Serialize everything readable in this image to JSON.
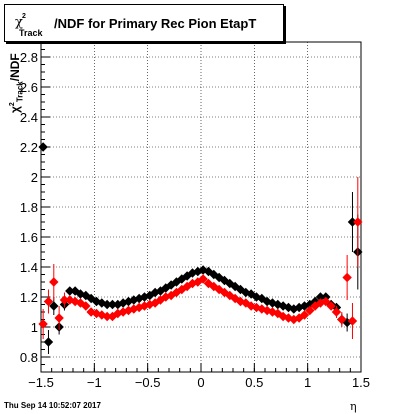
{
  "chart_data": {
    "type": "scatter",
    "title": "/NDF for Primary Rec Pion EtapT",
    "title_symbol": "χ",
    "title_superscript": "2",
    "title_subscript": "Track",
    "xlabel": "η",
    "ylabel": "/NDF",
    "ylabel_symbol": "χ",
    "ylabel_superscript": "2",
    "ylabel_subscript": "Track",
    "xlim": [
      -1.5,
      1.5
    ],
    "ylim": [
      0.7,
      2.9
    ],
    "xticks": [
      -1.5,
      -1,
      -0.5,
      0,
      0.5,
      1,
      1.5
    ],
    "xtick_labels": [
      "−1.5",
      "−1",
      "−0.5",
      "0",
      "0.5",
      "1",
      "1.5"
    ],
    "yticks": [
      0.8,
      1,
      1.2,
      1.4,
      1.6,
      1.8,
      2,
      2.2,
      2.4,
      2.6,
      2.8
    ],
    "ytick_labels": [
      "0.8",
      "1",
      "1.2",
      "1.4",
      "1.6",
      "1.8",
      "2",
      "2.2",
      "2.4",
      "2.6",
      "2.8"
    ],
    "grid": true,
    "footer": "Thu Sep 14 10:52:07 2017",
    "series": [
      {
        "color": "#000000",
        "marker": "diamond",
        "points": [
          {
            "x": -1.48,
            "y": 2.2,
            "err": 0.0
          },
          {
            "x": -1.43,
            "y": 0.9,
            "err": 0.08
          },
          {
            "x": -1.38,
            "y": 1.14,
            "err": 0.06
          },
          {
            "x": -1.33,
            "y": 1.0,
            "err": 0.05
          },
          {
            "x": -1.28,
            "y": 1.15,
            "err": 0.04
          },
          {
            "x": -1.23,
            "y": 1.24,
            "err": 0.0
          },
          {
            "x": -1.18,
            "y": 1.24,
            "err": 0.0
          },
          {
            "x": -1.13,
            "y": 1.22,
            "err": 0.0
          },
          {
            "x": -1.08,
            "y": 1.21,
            "err": 0.0
          },
          {
            "x": -1.03,
            "y": 1.19,
            "err": 0.0
          },
          {
            "x": -0.98,
            "y": 1.17,
            "err": 0.0
          },
          {
            "x": -0.93,
            "y": 1.16,
            "err": 0.0
          },
          {
            "x": -0.88,
            "y": 1.15,
            "err": 0.0
          },
          {
            "x": -0.83,
            "y": 1.15,
            "err": 0.0
          },
          {
            "x": -0.78,
            "y": 1.15,
            "err": 0.0
          },
          {
            "x": -0.73,
            "y": 1.16,
            "err": 0.0
          },
          {
            "x": -0.68,
            "y": 1.17,
            "err": 0.0
          },
          {
            "x": -0.63,
            "y": 1.18,
            "err": 0.0
          },
          {
            "x": -0.58,
            "y": 1.19,
            "err": 0.0
          },
          {
            "x": -0.53,
            "y": 1.2,
            "err": 0.0
          },
          {
            "x": -0.48,
            "y": 1.21,
            "err": 0.0
          },
          {
            "x": -0.43,
            "y": 1.23,
            "err": 0.0
          },
          {
            "x": -0.38,
            "y": 1.24,
            "err": 0.0
          },
          {
            "x": -0.33,
            "y": 1.26,
            "err": 0.0
          },
          {
            "x": -0.28,
            "y": 1.28,
            "err": 0.0
          },
          {
            "x": -0.23,
            "y": 1.3,
            "err": 0.0
          },
          {
            "x": -0.18,
            "y": 1.32,
            "err": 0.0
          },
          {
            "x": -0.13,
            "y": 1.34,
            "err": 0.0
          },
          {
            "x": -0.08,
            "y": 1.36,
            "err": 0.0
          },
          {
            "x": -0.03,
            "y": 1.37,
            "err": 0.0
          },
          {
            "x": 0.02,
            "y": 1.38,
            "err": 0.0
          },
          {
            "x": 0.07,
            "y": 1.37,
            "err": 0.0
          },
          {
            "x": 0.12,
            "y": 1.35,
            "err": 0.0
          },
          {
            "x": 0.17,
            "y": 1.33,
            "err": 0.0
          },
          {
            "x": 0.22,
            "y": 1.31,
            "err": 0.0
          },
          {
            "x": 0.27,
            "y": 1.29,
            "err": 0.0
          },
          {
            "x": 0.32,
            "y": 1.27,
            "err": 0.0
          },
          {
            "x": 0.37,
            "y": 1.25,
            "err": 0.0
          },
          {
            "x": 0.42,
            "y": 1.23,
            "err": 0.0
          },
          {
            "x": 0.47,
            "y": 1.22,
            "err": 0.0
          },
          {
            "x": 0.52,
            "y": 1.2,
            "err": 0.0
          },
          {
            "x": 0.57,
            "y": 1.19,
            "err": 0.0
          },
          {
            "x": 0.62,
            "y": 1.17,
            "err": 0.0
          },
          {
            "x": 0.67,
            "y": 1.16,
            "err": 0.0
          },
          {
            "x": 0.72,
            "y": 1.15,
            "err": 0.0
          },
          {
            "x": 0.77,
            "y": 1.14,
            "err": 0.0
          },
          {
            "x": 0.82,
            "y": 1.13,
            "err": 0.0
          },
          {
            "x": 0.87,
            "y": 1.12,
            "err": 0.0
          },
          {
            "x": 0.92,
            "y": 1.13,
            "err": 0.0
          },
          {
            "x": 0.97,
            "y": 1.14,
            "err": 0.0
          },
          {
            "x": 1.02,
            "y": 1.15,
            "err": 0.0
          },
          {
            "x": 1.07,
            "y": 1.17,
            "err": 0.0
          },
          {
            "x": 1.12,
            "y": 1.2,
            "err": 0.0
          },
          {
            "x": 1.17,
            "y": 1.2,
            "err": 0.0
          },
          {
            "x": 1.22,
            "y": 1.15,
            "err": 0.0
          },
          {
            "x": 1.27,
            "y": 1.13,
            "err": 0.03
          },
          {
            "x": 1.32,
            "y": 1.05,
            "err": 0.04
          },
          {
            "x": 1.37,
            "y": 1.03,
            "err": 0.06
          },
          {
            "x": 1.42,
            "y": 1.7,
            "err": 0.2
          },
          {
            "x": 1.47,
            "y": 1.5,
            "err": 0.25
          }
        ]
      },
      {
        "color": "#ff0000",
        "marker": "diamond",
        "points": [
          {
            "x": -1.48,
            "y": 1.02,
            "err": 0.1
          },
          {
            "x": -1.43,
            "y": 1.17,
            "err": 0.08
          },
          {
            "x": -1.38,
            "y": 1.3,
            "err": 0.12
          },
          {
            "x": -1.33,
            "y": 1.06,
            "err": 0.08
          },
          {
            "x": -1.28,
            "y": 1.18,
            "err": 0.05
          },
          {
            "x": -1.23,
            "y": 1.18,
            "err": 0.0
          },
          {
            "x": -1.18,
            "y": 1.17,
            "err": 0.0
          },
          {
            "x": -1.13,
            "y": 1.16,
            "err": 0.0
          },
          {
            "x": -1.08,
            "y": 1.14,
            "err": 0.0
          },
          {
            "x": -1.03,
            "y": 1.1,
            "err": 0.0
          },
          {
            "x": -0.98,
            "y": 1.09,
            "err": 0.0
          },
          {
            "x": -0.93,
            "y": 1.08,
            "err": 0.0
          },
          {
            "x": -0.88,
            "y": 1.07,
            "err": 0.0
          },
          {
            "x": -0.83,
            "y": 1.07,
            "err": 0.0
          },
          {
            "x": -0.78,
            "y": 1.09,
            "err": 0.0
          },
          {
            "x": -0.73,
            "y": 1.1,
            "err": 0.0
          },
          {
            "x": -0.68,
            "y": 1.11,
            "err": 0.0
          },
          {
            "x": -0.63,
            "y": 1.12,
            "err": 0.0
          },
          {
            "x": -0.58,
            "y": 1.13,
            "err": 0.0
          },
          {
            "x": -0.53,
            "y": 1.14,
            "err": 0.0
          },
          {
            "x": -0.48,
            "y": 1.15,
            "err": 0.0
          },
          {
            "x": -0.43,
            "y": 1.16,
            "err": 0.0
          },
          {
            "x": -0.38,
            "y": 1.18,
            "err": 0.0
          },
          {
            "x": -0.33,
            "y": 1.2,
            "err": 0.0
          },
          {
            "x": -0.28,
            "y": 1.21,
            "err": 0.0
          },
          {
            "x": -0.23,
            "y": 1.23,
            "err": 0.0
          },
          {
            "x": -0.18,
            "y": 1.25,
            "err": 0.0
          },
          {
            "x": -0.13,
            "y": 1.27,
            "err": 0.0
          },
          {
            "x": -0.08,
            "y": 1.29,
            "err": 0.0
          },
          {
            "x": -0.03,
            "y": 1.3,
            "err": 0.0
          },
          {
            "x": 0.02,
            "y": 1.32,
            "err": 0.0
          },
          {
            "x": 0.07,
            "y": 1.29,
            "err": 0.0
          },
          {
            "x": 0.12,
            "y": 1.27,
            "err": 0.0
          },
          {
            "x": 0.17,
            "y": 1.25,
            "err": 0.0
          },
          {
            "x": 0.22,
            "y": 1.23,
            "err": 0.0
          },
          {
            "x": 0.27,
            "y": 1.21,
            "err": 0.0
          },
          {
            "x": 0.32,
            "y": 1.19,
            "err": 0.0
          },
          {
            "x": 0.37,
            "y": 1.17,
            "err": 0.0
          },
          {
            "x": 0.42,
            "y": 1.16,
            "err": 0.0
          },
          {
            "x": 0.47,
            "y": 1.14,
            "err": 0.0
          },
          {
            "x": 0.52,
            "y": 1.13,
            "err": 0.0
          },
          {
            "x": 0.57,
            "y": 1.12,
            "err": 0.0
          },
          {
            "x": 0.62,
            "y": 1.11,
            "err": 0.0
          },
          {
            "x": 0.67,
            "y": 1.1,
            "err": 0.0
          },
          {
            "x": 0.72,
            "y": 1.09,
            "err": 0.0
          },
          {
            "x": 0.77,
            "y": 1.07,
            "err": 0.0
          },
          {
            "x": 0.82,
            "y": 1.06,
            "err": 0.0
          },
          {
            "x": 0.87,
            "y": 1.05,
            "err": 0.0
          },
          {
            "x": 0.92,
            "y": 1.06,
            "err": 0.0
          },
          {
            "x": 0.97,
            "y": 1.08,
            "err": 0.0
          },
          {
            "x": 1.02,
            "y": 1.11,
            "err": 0.0
          },
          {
            "x": 1.07,
            "y": 1.14,
            "err": 0.0
          },
          {
            "x": 1.12,
            "y": 1.16,
            "err": 0.0
          },
          {
            "x": 1.17,
            "y": 1.17,
            "err": 0.0
          },
          {
            "x": 1.22,
            "y": 1.14,
            "err": 0.0
          },
          {
            "x": 1.27,
            "y": 1.1,
            "err": 0.04
          },
          {
            "x": 1.32,
            "y": 1.05,
            "err": 0.05
          },
          {
            "x": 1.37,
            "y": 1.33,
            "err": 0.15
          },
          {
            "x": 1.42,
            "y": 1.04,
            "err": 0.12
          },
          {
            "x": 1.47,
            "y": 1.7,
            "err": 0.3
          }
        ]
      }
    ]
  }
}
